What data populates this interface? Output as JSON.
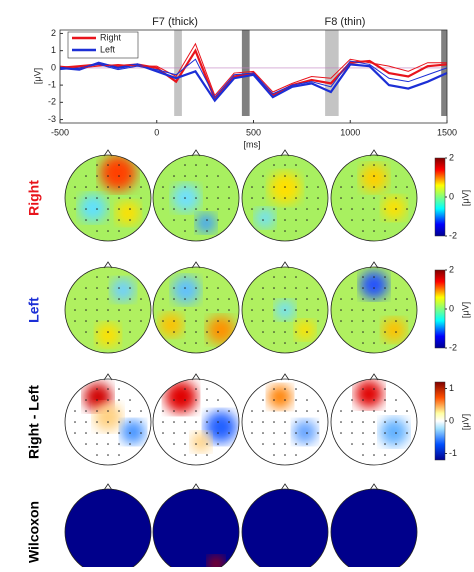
{
  "chart_data": {
    "type": "line",
    "annotations": [
      "F7 (thick)",
      "F8 (thin)"
    ],
    "xlabel": "[ms]",
    "ylabel": "[μV]",
    "x": [
      -500,
      -400,
      -300,
      -200,
      -100,
      0,
      100,
      200,
      300,
      400,
      500,
      600,
      700,
      800,
      900,
      1000,
      1100,
      1200,
      1300,
      1400,
      1500
    ],
    "series": [
      {
        "name": "Right",
        "color": "#e8141c",
        "style": "thick",
        "values": [
          0,
          0.1,
          0.2,
          0.1,
          0.2,
          0,
          -0.8,
          1.0,
          -1.8,
          -0.5,
          -0.3,
          -1.6,
          -1.0,
          -0.7,
          -0.9,
          0.3,
          0.4,
          -0.3,
          -0.5,
          0.1,
          0.2
        ]
      },
      {
        "name": "Left",
        "color": "#1c2fd6",
        "style": "thick",
        "values": [
          0,
          -0.1,
          0.3,
          0,
          0.2,
          -0.2,
          -0.6,
          -0.2,
          -1.9,
          -0.6,
          -0.4,
          -1.7,
          -1.1,
          -0.9,
          -1.4,
          0.2,
          0.1,
          -1.0,
          -1.2,
          -0.8,
          -0.3
        ]
      },
      {
        "name": "Right",
        "color": "#e8141c",
        "style": "thin",
        "values": [
          0.1,
          0,
          0.1,
          0.2,
          0.1,
          0.1,
          -0.5,
          1.4,
          -1.6,
          -0.3,
          -0.2,
          -1.4,
          -0.9,
          -0.5,
          -0.6,
          0.5,
          0.3,
          0.1,
          -0.2,
          0.3,
          0.3
        ]
      },
      {
        "name": "Left",
        "color": "#1c2fd6",
        "style": "thin",
        "values": [
          -0.1,
          0,
          0.2,
          -0.1,
          0.1,
          -0.1,
          -0.4,
          0.5,
          -1.7,
          -0.4,
          -0.3,
          -1.5,
          -1.0,
          -0.8,
          -1.1,
          0.4,
          0.2,
          -0.6,
          -0.8,
          -0.4,
          0
        ]
      }
    ],
    "shaded_windows": [
      {
        "x": [
          90,
          130
        ],
        "color": "#c4c4c4"
      },
      {
        "x": [
          440,
          480
        ],
        "color": "#808080"
      },
      {
        "x": [
          870,
          940
        ],
        "color": "#c4c4c4"
      },
      {
        "x": [
          1470,
          1500
        ],
        "color": "#808080"
      }
    ],
    "xlim": [
      -500,
      1500
    ],
    "xticks": [
      -500,
      0,
      500,
      1000,
      1500
    ],
    "ylim": [
      -3.2,
      2.2
    ],
    "yticks": [
      -3,
      -2,
      -1,
      0,
      1,
      2
    ],
    "legend": "upper left"
  },
  "topo_rows": [
    {
      "label": "Right",
      "label_color": "#e8141c",
      "clim": [
        -2,
        2
      ],
      "cticks": [
        -2,
        0,
        2
      ],
      "unit": "[μV]"
    },
    {
      "label": "Left",
      "label_color": "#1c2fd6",
      "clim": [
        -2,
        2
      ],
      "cticks": [
        -2,
        0,
        2
      ],
      "unit": "[μV]"
    },
    {
      "label": "Right - Left",
      "label_color": "#000000",
      "clim": [
        -1.2,
        1.2
      ],
      "cticks": [
        -1,
        0,
        1
      ],
      "unit": "[μV]"
    },
    {
      "label": "Wilcoxon",
      "label_color": "#000000"
    }
  ]
}
